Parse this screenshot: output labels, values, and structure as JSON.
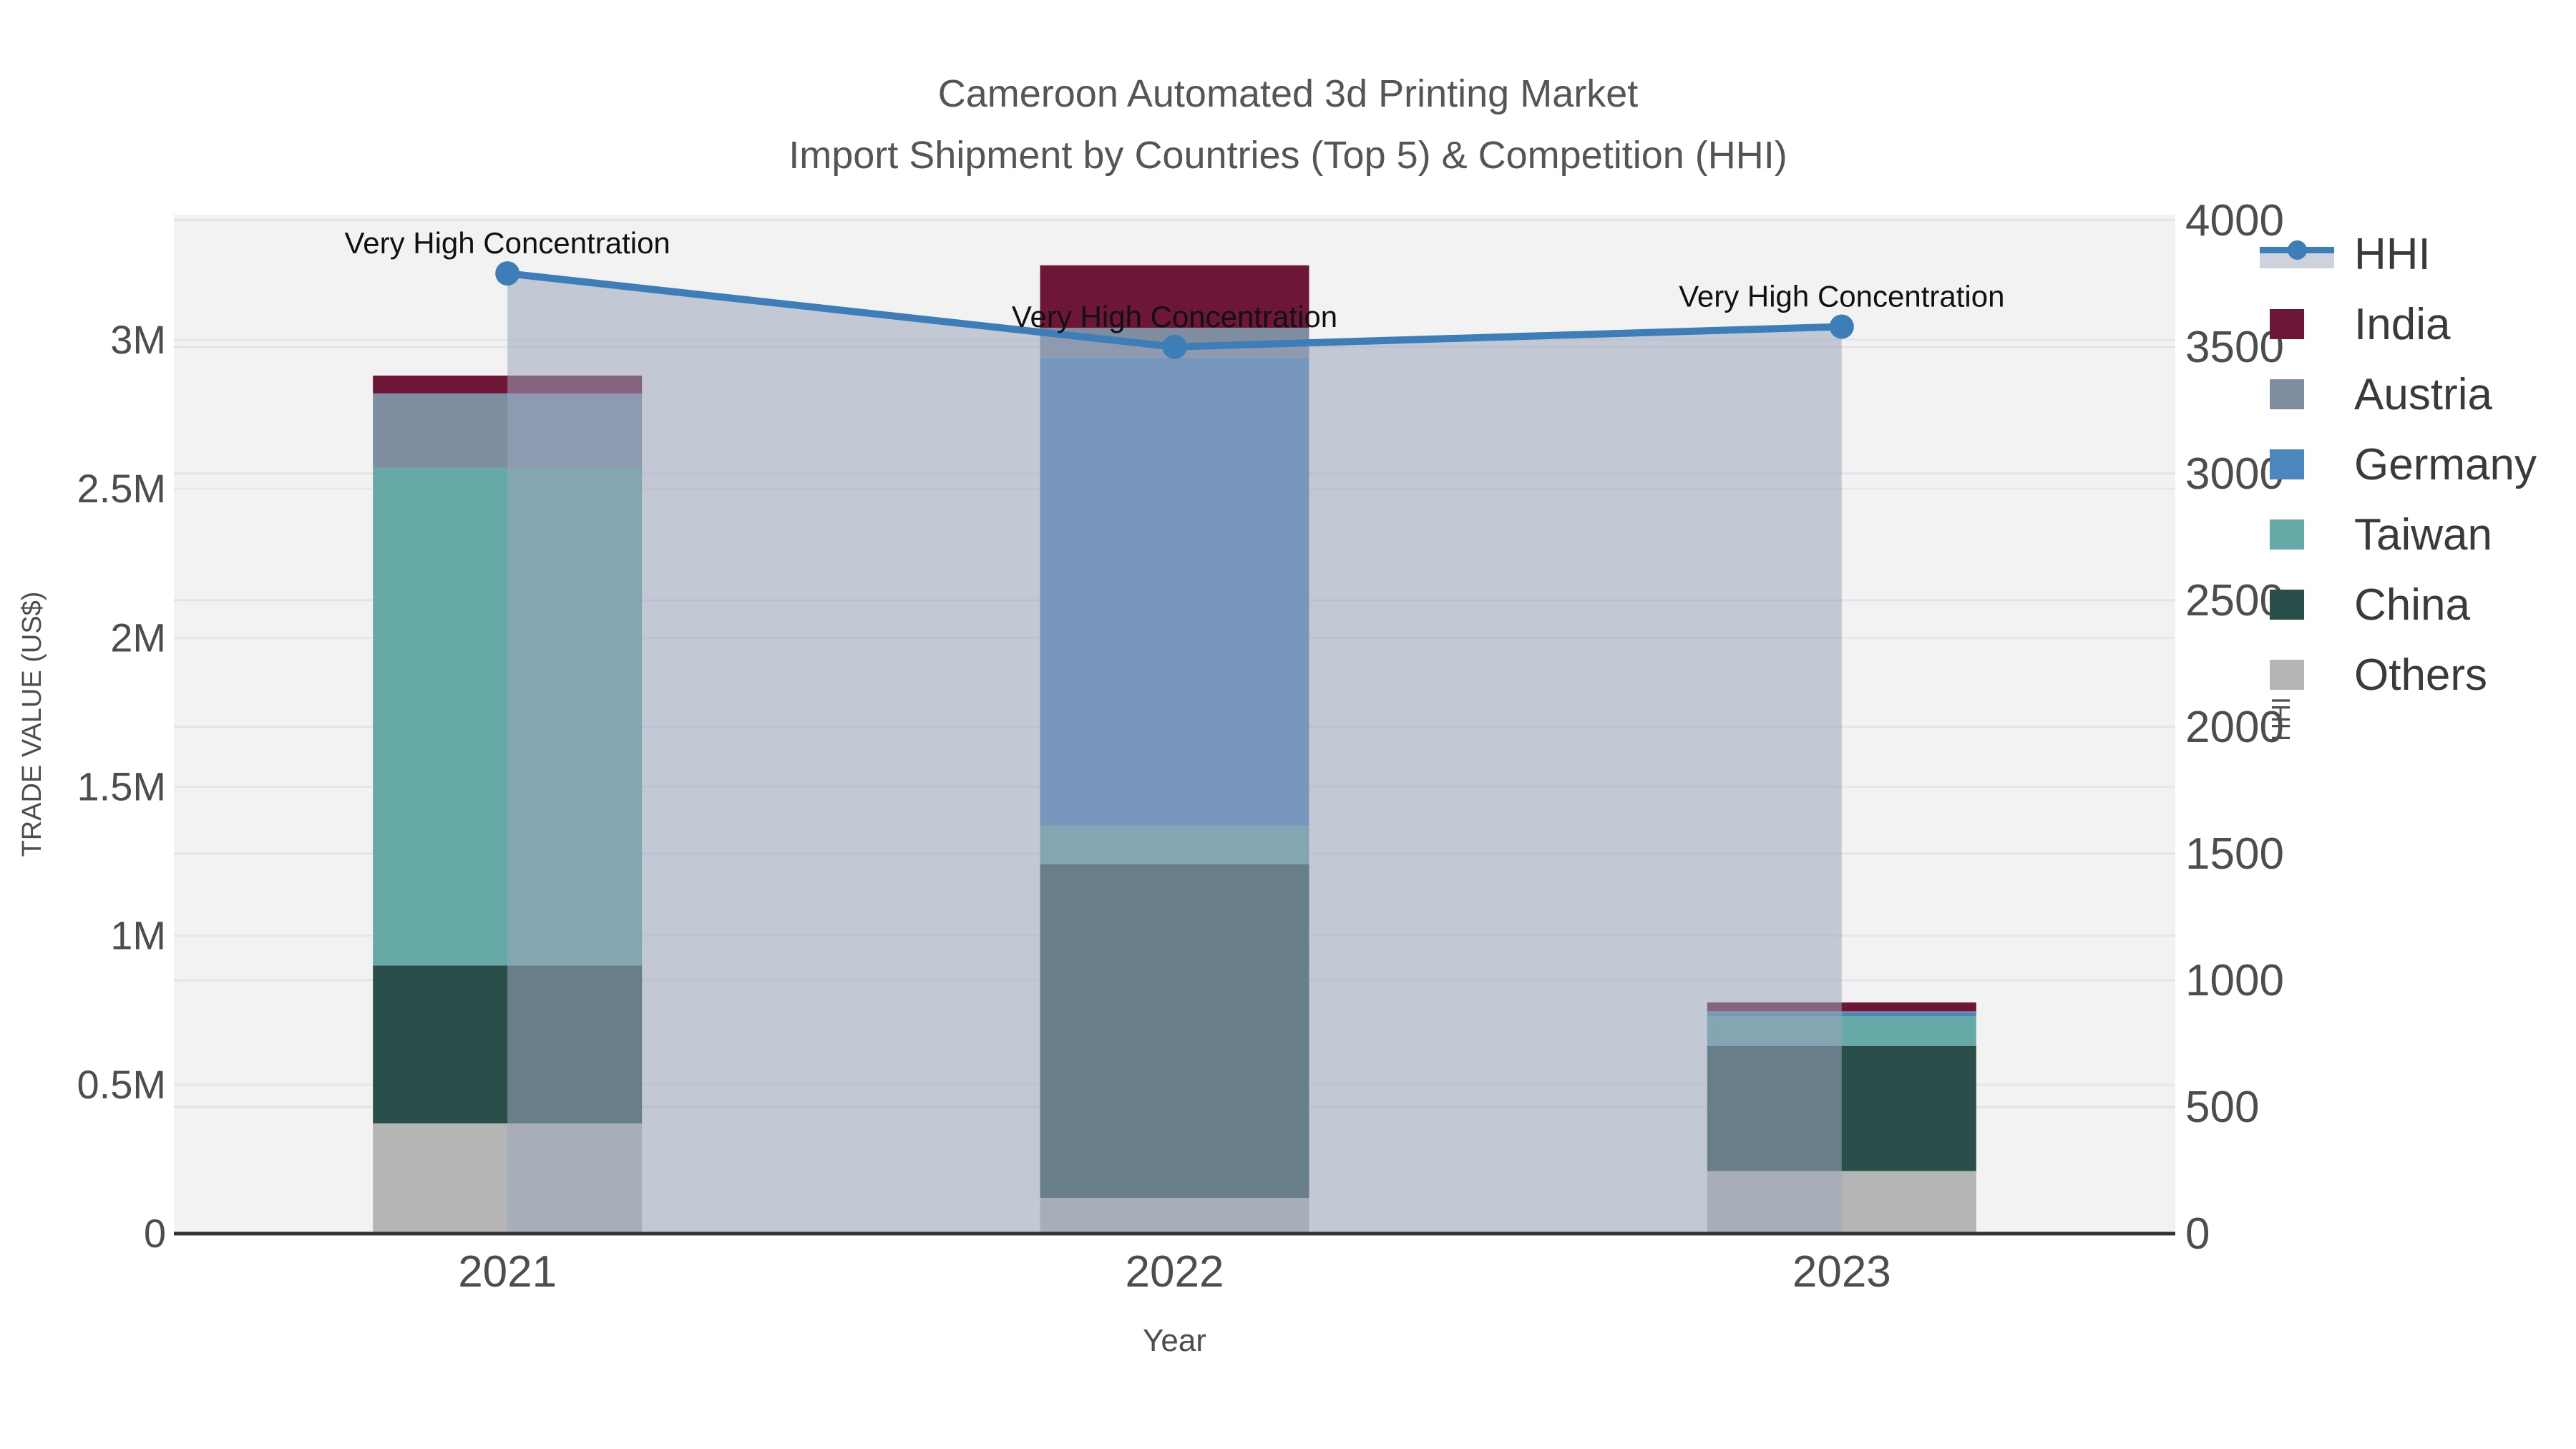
{
  "figure": {
    "title_line1": "Cameroon Automated 3d Printing Market",
    "title_line2": "Import Shipment by Countries (Top 5) & Competition (HHI)"
  },
  "chart_data": {
    "type": "stacked-bar with dual-axis line (combo)",
    "categories": [
      "2021",
      "2022",
      "2023"
    ],
    "xlabel": "Year",
    "y_left": {
      "label": "TRADE VALUE (US$)",
      "unit": "million US$",
      "lim": [
        0,
        3.42
      ],
      "tick_values": [
        0,
        0.5,
        1,
        1.5,
        2,
        2.5,
        3
      ],
      "tick_labels": [
        "0",
        "0.5M",
        "1M",
        "1.5M",
        "2M",
        "2.5M",
        "3M"
      ]
    },
    "y_right": {
      "label": "HHI",
      "lim": [
        0,
        4022
      ],
      "tick_values": [
        0,
        500,
        1000,
        1500,
        2000,
        2500,
        3000,
        3500,
        4000
      ],
      "tick_labels": [
        "0",
        "500",
        "1000",
        "1500",
        "2000",
        "2500",
        "3000",
        "3500",
        "4000"
      ]
    },
    "bar_series": [
      {
        "name": "Others",
        "color": "#b5b5b5",
        "values": [
          0.37,
          0.12,
          0.21
        ]
      },
      {
        "name": "China",
        "color": "#2a4f4b",
        "values": [
          0.53,
          1.12,
          0.42
        ]
      },
      {
        "name": "Taiwan",
        "color": "#67a9a7",
        "values": [
          1.67,
          0.13,
          0.1
        ]
      },
      {
        "name": "Germany",
        "color": "#4c86bf",
        "values": [
          0.0,
          1.57,
          0.012
        ]
      },
      {
        "name": "Austria",
        "color": "#7e8da0",
        "values": [
          0.25,
          0.1,
          0.004
        ]
      },
      {
        "name": "India",
        "color": "#6e1638",
        "values": [
          0.06,
          0.21,
          0.03
        ]
      }
    ],
    "line_series": {
      "name": "HHI",
      "axis": "right",
      "color": "#3d7eb8",
      "area_fill": "rgba(154,166,188,0.55)",
      "values": [
        3790,
        3500,
        3580
      ]
    },
    "annotations": [
      {
        "text": "Very High Concentration",
        "category": "2021"
      },
      {
        "text": "Very High Concentration",
        "category": "2022"
      },
      {
        "text": "Very High Concentration",
        "category": "2023"
      }
    ],
    "legend": [
      {
        "label": "HHI",
        "type": "line",
        "color": "#3d7eb8"
      },
      {
        "label": "India",
        "type": "swatch",
        "color": "#6e1638"
      },
      {
        "label": "Austria",
        "type": "swatch",
        "color": "#7e8da0"
      },
      {
        "label": "Germany",
        "type": "swatch",
        "color": "#4c86bf"
      },
      {
        "label": "Taiwan",
        "type": "swatch",
        "color": "#67a9a7"
      },
      {
        "label": "China",
        "type": "swatch",
        "color": "#2a4f4b"
      },
      {
        "label": "Others",
        "type": "swatch",
        "color": "#b5b5b5"
      }
    ],
    "plot_style": {
      "plot_bg": "#f2f2f2",
      "grid_left": "#e7e7e7",
      "grid_right": "#e2e2e8",
      "axis_line": "#333333",
      "tick_text": "#4d4d4d",
      "title_text": "#555555",
      "annotation_text": "#111111"
    }
  }
}
